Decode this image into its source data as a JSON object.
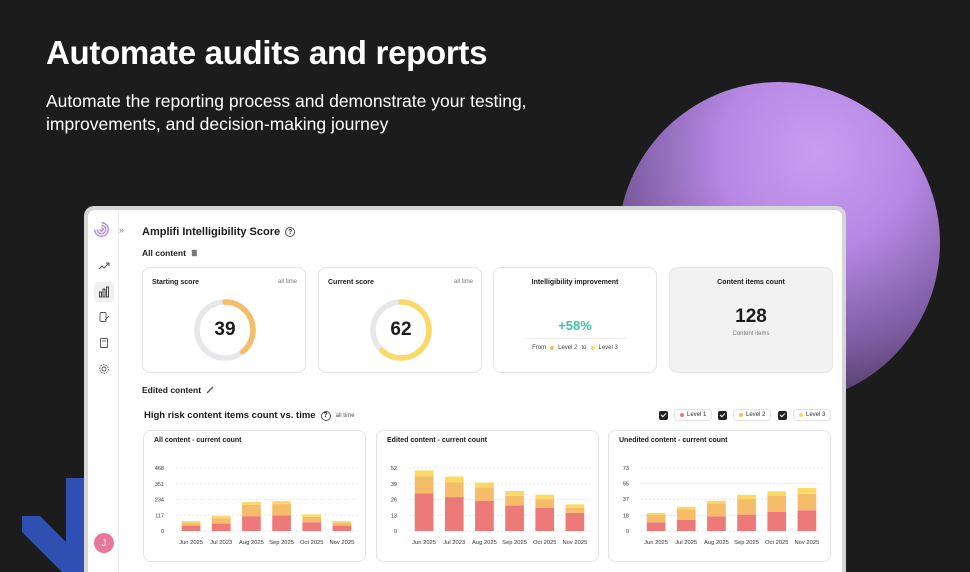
{
  "hero": {
    "title": "Automate audits and reports",
    "subtitle": "Automate the reporting process and demonstrate your testing, improvements, and decision-making journey"
  },
  "colors": {
    "level1": "#ec7a79",
    "level2": "#f5bc69",
    "level3": "#fbd968",
    "improvement": "#3fc3a5",
    "avatar": "#e7789c",
    "orb": "#b688e4"
  },
  "sidebar": {
    "icons": [
      "trend-icon",
      "bar-chart-icon",
      "content-edit-icon",
      "book-icon",
      "settings-icon"
    ],
    "active": "bar-chart-icon",
    "avatar_initial": "J"
  },
  "page": {
    "title": "Amplifi Intelligibility Score",
    "all_content_label": "All content",
    "edited_content_label": "Edited content"
  },
  "cards": {
    "starting": {
      "label": "Starting score",
      "meta": "all time",
      "value": "39",
      "fraction": 0.39
    },
    "current": {
      "label": "Current score",
      "meta": "all time",
      "value": "62",
      "fraction": 0.62
    },
    "improvement": {
      "label": "Intelligibility improvement",
      "value": "+58%",
      "from_word": "From",
      "from_level": "Level 2",
      "to_word": "to",
      "to_level": "Level 3"
    },
    "count": {
      "label": "Content items count",
      "value": "128",
      "sub": "Content items"
    }
  },
  "risk": {
    "title": "High risk content items count vs. time",
    "meta": "all time",
    "legend": [
      "Level 1",
      "Level 2",
      "Level 3"
    ]
  },
  "chart_data": [
    {
      "type": "bar",
      "stacked": true,
      "title": "All content - current count",
      "categories": [
        "Jun 2025",
        "Jul 2023",
        "Aug 2025",
        "Sep 2025",
        "Oct 2025",
        "Nov 2025"
      ],
      "yticks": [
        0,
        117,
        234,
        351,
        468
      ],
      "ylim": [
        0,
        468
      ],
      "series": [
        {
          "name": "Level 1",
          "values": [
            40,
            55,
            110,
            115,
            65,
            40
          ]
        },
        {
          "name": "Level 2",
          "values": [
            22,
            40,
            85,
            85,
            40,
            22
          ]
        },
        {
          "name": "Level 3",
          "values": [
            12,
            18,
            20,
            22,
            18,
            12
          ]
        }
      ]
    },
    {
      "type": "bar",
      "stacked": true,
      "title": "Edited content - current count",
      "categories": [
        "Jun 2025",
        "Jul 2023",
        "Aug 2025",
        "Sep 2025",
        "Oct 2025",
        "Nov 2025"
      ],
      "yticks": [
        0,
        13,
        26,
        39,
        52
      ],
      "ylim": [
        0,
        52
      ],
      "series": [
        {
          "name": "Level 1",
          "values": [
            31,
            28,
            25,
            21,
            19,
            15
          ]
        },
        {
          "name": "Level 2",
          "values": [
            14,
            12,
            11,
            8,
            7,
            4
          ]
        },
        {
          "name": "Level 3",
          "values": [
            5,
            5,
            4,
            4,
            4,
            3
          ]
        }
      ]
    },
    {
      "type": "bar",
      "stacked": true,
      "title": "Unedited content - current count",
      "categories": [
        "Jun 2025",
        "Jul 2025",
        "Aug 2025",
        "Sep 2025",
        "Oct 2025",
        "Nov 2025"
      ],
      "yticks": [
        0,
        18,
        37,
        55,
        73
      ],
      "ylim": [
        0,
        73
      ],
      "series": [
        {
          "name": "Level 1",
          "values": [
            10,
            13,
            17,
            19,
            22,
            24
          ]
        },
        {
          "name": "Level 2",
          "values": [
            9,
            12,
            15,
            18,
            19,
            19
          ]
        },
        {
          "name": "Level 3",
          "values": [
            2,
            3,
            3,
            5,
            5,
            7
          ]
        }
      ]
    }
  ]
}
